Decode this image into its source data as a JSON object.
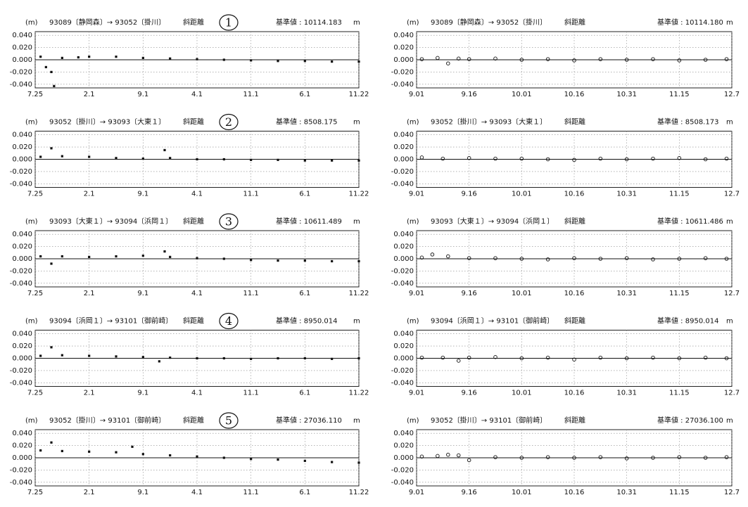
{
  "chart_data": [
    {
      "type": "scatter",
      "unit_label": "(m)",
      "title": "93089〔静岡森〕→ 93052〔掛川〕",
      "subtitle": "斜距離",
      "annotation": "1",
      "reference": "基準値 : 10114.183",
      "unit": "m",
      "marker": "filled",
      "color": "#111111",
      "grid": true,
      "xlim": [
        0,
        6
      ],
      "xticks": [
        {
          "value": 0,
          "label": "7.25"
        },
        {
          "value": 1,
          "label": "2.1"
        },
        {
          "value": 2,
          "label": "9.1"
        },
        {
          "value": 3,
          "label": "4.1"
        },
        {
          "value": 4,
          "label": "11.1"
        },
        {
          "value": 5,
          "label": "6.1"
        },
        {
          "value": 6,
          "label": "11.22"
        }
      ],
      "ylim": [
        -0.046,
        0.046
      ],
      "yticks": [
        {
          "value": 0.04,
          "label": "0.040"
        },
        {
          "value": 0.02,
          "label": "0.020"
        },
        {
          "value": 0,
          "label": "0.000"
        },
        {
          "value": -0.02,
          "label": "-0.020"
        },
        {
          "value": -0.04,
          "label": "-0.040"
        }
      ],
      "x": [
        0.1,
        0.2,
        0.35,
        0.5,
        0.8,
        1,
        1.5,
        2,
        2.5,
        3,
        3.5,
        4,
        4.5,
        5,
        5.5,
        6,
        0.3
      ],
      "values": [
        0.005,
        -0.012,
        -0.043,
        0.003,
        0.004,
        0.005,
        0.005,
        0.003,
        0.002,
        0.001,
        0,
        -0.001,
        -0.002,
        -0.002,
        -0.003,
        -0.003,
        -0.02
      ]
    },
    {
      "type": "scatter",
      "unit_label": "(m)",
      "title": "93089〔静岡森〕→ 93052〔掛川〕",
      "subtitle": "斜距離",
      "reference": "基準値 : 10114.180",
      "unit": "m",
      "marker": "open",
      "color": "#111111",
      "grid": true,
      "xlim": [
        0,
        6
      ],
      "xticks": [
        {
          "value": 0,
          "label": "9.01"
        },
        {
          "value": 1,
          "label": "9.16"
        },
        {
          "value": 2,
          "label": "10.01"
        },
        {
          "value": 3,
          "label": "10.16"
        },
        {
          "value": 4,
          "label": "10.31"
        },
        {
          "value": 5,
          "label": "11.15"
        },
        {
          "value": 6,
          "label": "12.7"
        }
      ],
      "ylim": [
        -0.046,
        0.046
      ],
      "yticks": [
        {
          "value": 0.04,
          "label": "0.040"
        },
        {
          "value": 0.02,
          "label": "0.020"
        },
        {
          "value": 0,
          "label": "0.000"
        },
        {
          "value": -0.02,
          "label": "-0.020"
        },
        {
          "value": -0.04,
          "label": "-0.040"
        }
      ],
      "x": [
        0.1,
        0.4,
        0.6,
        0.8,
        1,
        1.5,
        2,
        2.5,
        3,
        3.5,
        4,
        4.5,
        5,
        5.5,
        5.9
      ],
      "values": [
        0.001,
        0.003,
        -0.006,
        0.002,
        0.001,
        0.002,
        0,
        0.001,
        -0.001,
        0.001,
        0,
        0.001,
        -0.001,
        0,
        0.001
      ]
    },
    {
      "type": "scatter",
      "unit_label": "(m)",
      "title": "93052〔掛川〕→ 93093〔大東１〕",
      "subtitle": "斜距離",
      "annotation": "2",
      "reference": "基準値 : 8508.175",
      "unit": "m",
      "marker": "filled",
      "color": "#111111",
      "grid": true,
      "xlim": [
        0,
        6
      ],
      "xticks": [
        {
          "value": 0,
          "label": "7.25"
        },
        {
          "value": 1,
          "label": "2.1"
        },
        {
          "value": 2,
          "label": "9.1"
        },
        {
          "value": 3,
          "label": "4.1"
        },
        {
          "value": 4,
          "label": "11.1"
        },
        {
          "value": 5,
          "label": "6.1"
        },
        {
          "value": 6,
          "label": "11.22"
        }
      ],
      "ylim": [
        -0.046,
        0.046
      ],
      "yticks": [
        {
          "value": 0.04,
          "label": "0.040"
        },
        {
          "value": 0.02,
          "label": "0.020"
        },
        {
          "value": 0,
          "label": "0.000"
        },
        {
          "value": -0.02,
          "label": "-0.020"
        },
        {
          "value": -0.04,
          "label": "-0.040"
        }
      ],
      "x": [
        0.1,
        0.3,
        0.5,
        1,
        1.5,
        2,
        2.4,
        2.5,
        3,
        3.5,
        4,
        4.5,
        5,
        5.5,
        6
      ],
      "values": [
        0.004,
        0.018,
        0.005,
        0.004,
        0.002,
        0.001,
        0.015,
        0.002,
        0,
        0,
        -0.001,
        -0.001,
        -0.002,
        -0.002,
        -0.002
      ]
    },
    {
      "type": "scatter",
      "unit_label": "(m)",
      "title": "93052〔掛川〕→ 93093〔大東１〕",
      "subtitle": "斜距離",
      "reference": "基準値 : 8508.173",
      "unit": "m",
      "marker": "open",
      "color": "#111111",
      "grid": true,
      "xlim": [
        0,
        6
      ],
      "xticks": [
        {
          "value": 0,
          "label": "9.01"
        },
        {
          "value": 1,
          "label": "9.16"
        },
        {
          "value": 2,
          "label": "10.01"
        },
        {
          "value": 3,
          "label": "10.16"
        },
        {
          "value": 4,
          "label": "10.31"
        },
        {
          "value": 5,
          "label": "11.15"
        },
        {
          "value": 6,
          "label": "12.7"
        }
      ],
      "ylim": [
        -0.046,
        0.046
      ],
      "yticks": [
        {
          "value": 0.04,
          "label": "0.040"
        },
        {
          "value": 0.02,
          "label": "0.020"
        },
        {
          "value": 0,
          "label": "0.000"
        },
        {
          "value": -0.02,
          "label": "-0.020"
        },
        {
          "value": -0.04,
          "label": "-0.040"
        }
      ],
      "x": [
        0.1,
        0.5,
        1,
        1.5,
        2,
        2.5,
        3,
        3.5,
        4,
        4.5,
        5,
        5.5,
        5.9
      ],
      "values": [
        0.003,
        0.001,
        0.002,
        0.001,
        0.001,
        0,
        -0.001,
        0.001,
        0,
        0.001,
        0.002,
        0,
        0.001
      ]
    },
    {
      "type": "scatter",
      "unit_label": "(m)",
      "title": "93093〔大東１〕→ 93094〔浜岡１〕",
      "subtitle": "斜距離",
      "annotation": "3",
      "reference": "基準値 : 10611.489",
      "unit": "m",
      "marker": "filled",
      "color": "#111111",
      "grid": true,
      "xlim": [
        0,
        6
      ],
      "xticks": [
        {
          "value": 0,
          "label": "7.25"
        },
        {
          "value": 1,
          "label": "2.1"
        },
        {
          "value": 2,
          "label": "9.1"
        },
        {
          "value": 3,
          "label": "4.1"
        },
        {
          "value": 4,
          "label": "11.1"
        },
        {
          "value": 5,
          "label": "6.1"
        },
        {
          "value": 6,
          "label": "11.22"
        }
      ],
      "ylim": [
        -0.046,
        0.046
      ],
      "yticks": [
        {
          "value": 0.04,
          "label": "0.040"
        },
        {
          "value": 0.02,
          "label": "0.020"
        },
        {
          "value": 0,
          "label": "0.000"
        },
        {
          "value": -0.02,
          "label": "-0.020"
        },
        {
          "value": -0.04,
          "label": "-0.040"
        }
      ],
      "x": [
        0.1,
        0.3,
        0.5,
        1,
        1.5,
        2,
        2.4,
        2.5,
        3,
        3.5,
        4,
        4.5,
        5,
        5.5,
        6
      ],
      "values": [
        0.004,
        -0.008,
        0.004,
        0.003,
        0.004,
        0.005,
        0.012,
        0.003,
        0.001,
        0,
        -0.002,
        -0.003,
        -0.003,
        -0.004,
        -0.004
      ]
    },
    {
      "type": "scatter",
      "unit_label": "(m)",
      "title": "93093〔大東１〕→ 93094〔浜岡１〕",
      "subtitle": "斜距離",
      "reference": "基準値 : 10611.486",
      "unit": "m",
      "marker": "open",
      "color": "#111111",
      "grid": true,
      "xlim": [
        0,
        6
      ],
      "xticks": [
        {
          "value": 0,
          "label": "9.01"
        },
        {
          "value": 1,
          "label": "9.16"
        },
        {
          "value": 2,
          "label": "10.01"
        },
        {
          "value": 3,
          "label": "10.16"
        },
        {
          "value": 4,
          "label": "10.31"
        },
        {
          "value": 5,
          "label": "11.15"
        },
        {
          "value": 6,
          "label": "12.7"
        }
      ],
      "ylim": [
        -0.046,
        0.046
      ],
      "yticks": [
        {
          "value": 0.04,
          "label": "0.040"
        },
        {
          "value": 0.02,
          "label": "0.020"
        },
        {
          "value": 0,
          "label": "0.000"
        },
        {
          "value": -0.02,
          "label": "-0.020"
        },
        {
          "value": -0.04,
          "label": "-0.040"
        }
      ],
      "x": [
        0.1,
        0.3,
        0.6,
        1,
        1.5,
        2,
        2.5,
        3,
        3.5,
        4,
        4.5,
        5,
        5.5,
        5.9
      ],
      "values": [
        0.002,
        0.007,
        0.004,
        0.001,
        0.001,
        0,
        -0.001,
        0.001,
        0,
        0.001,
        -0.001,
        0,
        0.001,
        0
      ]
    },
    {
      "type": "scatter",
      "unit_label": "(m)",
      "title": "93094〔浜岡１〕→ 93101〔御前崎〕",
      "subtitle": "斜距離",
      "annotation": "4",
      "reference": "基準値 : 8950.014",
      "unit": "m",
      "marker": "filled",
      "color": "#111111",
      "grid": true,
      "xlim": [
        0,
        6
      ],
      "xticks": [
        {
          "value": 0,
          "label": "7.25"
        },
        {
          "value": 1,
          "label": "2.1"
        },
        {
          "value": 2,
          "label": "9.1"
        },
        {
          "value": 3,
          "label": "4.1"
        },
        {
          "value": 4,
          "label": "11.1"
        },
        {
          "value": 5,
          "label": "6.1"
        },
        {
          "value": 6,
          "label": "11.22"
        }
      ],
      "ylim": [
        -0.046,
        0.046
      ],
      "yticks": [
        {
          "value": 0.04,
          "label": "0.040"
        },
        {
          "value": 0.02,
          "label": "0.020"
        },
        {
          "value": 0,
          "label": "0.000"
        },
        {
          "value": -0.02,
          "label": "-0.020"
        },
        {
          "value": -0.04,
          "label": "-0.040"
        }
      ],
      "x": [
        0.1,
        0.3,
        0.5,
        1,
        1.5,
        2,
        2.3,
        2.5,
        3,
        3.5,
        4,
        4.5,
        5,
        5.5,
        6
      ],
      "values": [
        0.004,
        0.018,
        0.005,
        0.004,
        0.003,
        0.002,
        -0.005,
        0.001,
        0,
        0,
        -0.001,
        0,
        0,
        -0.001,
        0
      ]
    },
    {
      "type": "scatter",
      "unit_label": "(m)",
      "title": "93094〔浜岡１〕→ 93101〔御前崎〕",
      "subtitle": "斜距離",
      "reference": "基準値 : 8950.014",
      "unit": "m",
      "marker": "open",
      "color": "#111111",
      "grid": true,
      "xlim": [
        0,
        6
      ],
      "xticks": [
        {
          "value": 0,
          "label": "9.01"
        },
        {
          "value": 1,
          "label": "9.16"
        },
        {
          "value": 2,
          "label": "10.01"
        },
        {
          "value": 3,
          "label": "10.16"
        },
        {
          "value": 4,
          "label": "10.31"
        },
        {
          "value": 5,
          "label": "11.15"
        },
        {
          "value": 6,
          "label": "12.7"
        }
      ],
      "ylim": [
        -0.046,
        0.046
      ],
      "yticks": [
        {
          "value": 0.04,
          "label": "0.040"
        },
        {
          "value": 0.02,
          "label": "0.020"
        },
        {
          "value": 0,
          "label": "0.000"
        },
        {
          "value": -0.02,
          "label": "-0.020"
        },
        {
          "value": -0.04,
          "label": "-0.040"
        }
      ],
      "x": [
        0.1,
        0.5,
        0.8,
        1,
        1.5,
        2,
        2.5,
        3,
        3.5,
        4,
        4.5,
        5,
        5.5,
        5.9
      ],
      "values": [
        0.001,
        0.001,
        -0.004,
        0.001,
        0.002,
        0,
        0.001,
        -0.002,
        0.001,
        0,
        0.001,
        0,
        0.001,
        0
      ]
    },
    {
      "type": "scatter",
      "unit_label": "(m)",
      "title": "93052〔掛川〕→ 93101〔御前崎〕",
      "subtitle": "斜距離",
      "annotation": "5",
      "reference": "基準値 : 27036.110",
      "unit": "m",
      "marker": "filled",
      "color": "#111111",
      "grid": true,
      "xlim": [
        0,
        6
      ],
      "xticks": [
        {
          "value": 0,
          "label": "7.25"
        },
        {
          "value": 1,
          "label": "2.1"
        },
        {
          "value": 2,
          "label": "9.1"
        },
        {
          "value": 3,
          "label": "4.1"
        },
        {
          "value": 4,
          "label": "11.1"
        },
        {
          "value": 5,
          "label": "6.1"
        },
        {
          "value": 6,
          "label": "11.22"
        }
      ],
      "ylim": [
        -0.046,
        0.046
      ],
      "yticks": [
        {
          "value": 0.04,
          "label": "0.040"
        },
        {
          "value": 0.02,
          "label": "0.020"
        },
        {
          "value": 0,
          "label": "0.000"
        },
        {
          "value": -0.02,
          "label": "-0.020"
        },
        {
          "value": -0.04,
          "label": "-0.040"
        }
      ],
      "x": [
        0.1,
        0.3,
        0.5,
        1,
        1.5,
        1.8,
        2,
        2.5,
        3,
        3.5,
        4,
        4.5,
        5,
        5.5,
        6
      ],
      "values": [
        0.012,
        0.025,
        0.011,
        0.01,
        0.009,
        0.018,
        0.006,
        0.004,
        0.002,
        0,
        -0.002,
        -0.003,
        -0.005,
        -0.007,
        -0.008
      ]
    },
    {
      "type": "scatter",
      "unit_label": "(m)",
      "title": "93052〔掛川〕→ 93101〔御前崎〕",
      "subtitle": "斜距離",
      "reference": "基準値 : 27036.100",
      "unit": "m",
      "marker": "open",
      "color": "#111111",
      "grid": true,
      "xlim": [
        0,
        6
      ],
      "xticks": [
        {
          "value": 0,
          "label": "9.01"
        },
        {
          "value": 1,
          "label": "9.16"
        },
        {
          "value": 2,
          "label": "10.01"
        },
        {
          "value": 3,
          "label": "10.16"
        },
        {
          "value": 4,
          "label": "10.31"
        },
        {
          "value": 5,
          "label": "11.15"
        },
        {
          "value": 6,
          "label": "12.7"
        }
      ],
      "ylim": [
        -0.046,
        0.046
      ],
      "yticks": [
        {
          "value": 0.04,
          "label": "0.040"
        },
        {
          "value": 0.02,
          "label": "0.020"
        },
        {
          "value": 0,
          "label": "0.000"
        },
        {
          "value": -0.02,
          "label": "-0.020"
        },
        {
          "value": -0.04,
          "label": "-0.040"
        }
      ],
      "x": [
        0.1,
        0.4,
        0.6,
        0.8,
        1,
        1.5,
        2,
        2.5,
        3,
        3.5,
        4,
        4.5,
        5,
        5.5,
        5.9
      ],
      "values": [
        0.002,
        0.003,
        0.005,
        0.004,
        -0.004,
        0.001,
        0,
        0.001,
        0,
        0.001,
        -0.001,
        0,
        0.001,
        0,
        0.001
      ]
    }
  ]
}
